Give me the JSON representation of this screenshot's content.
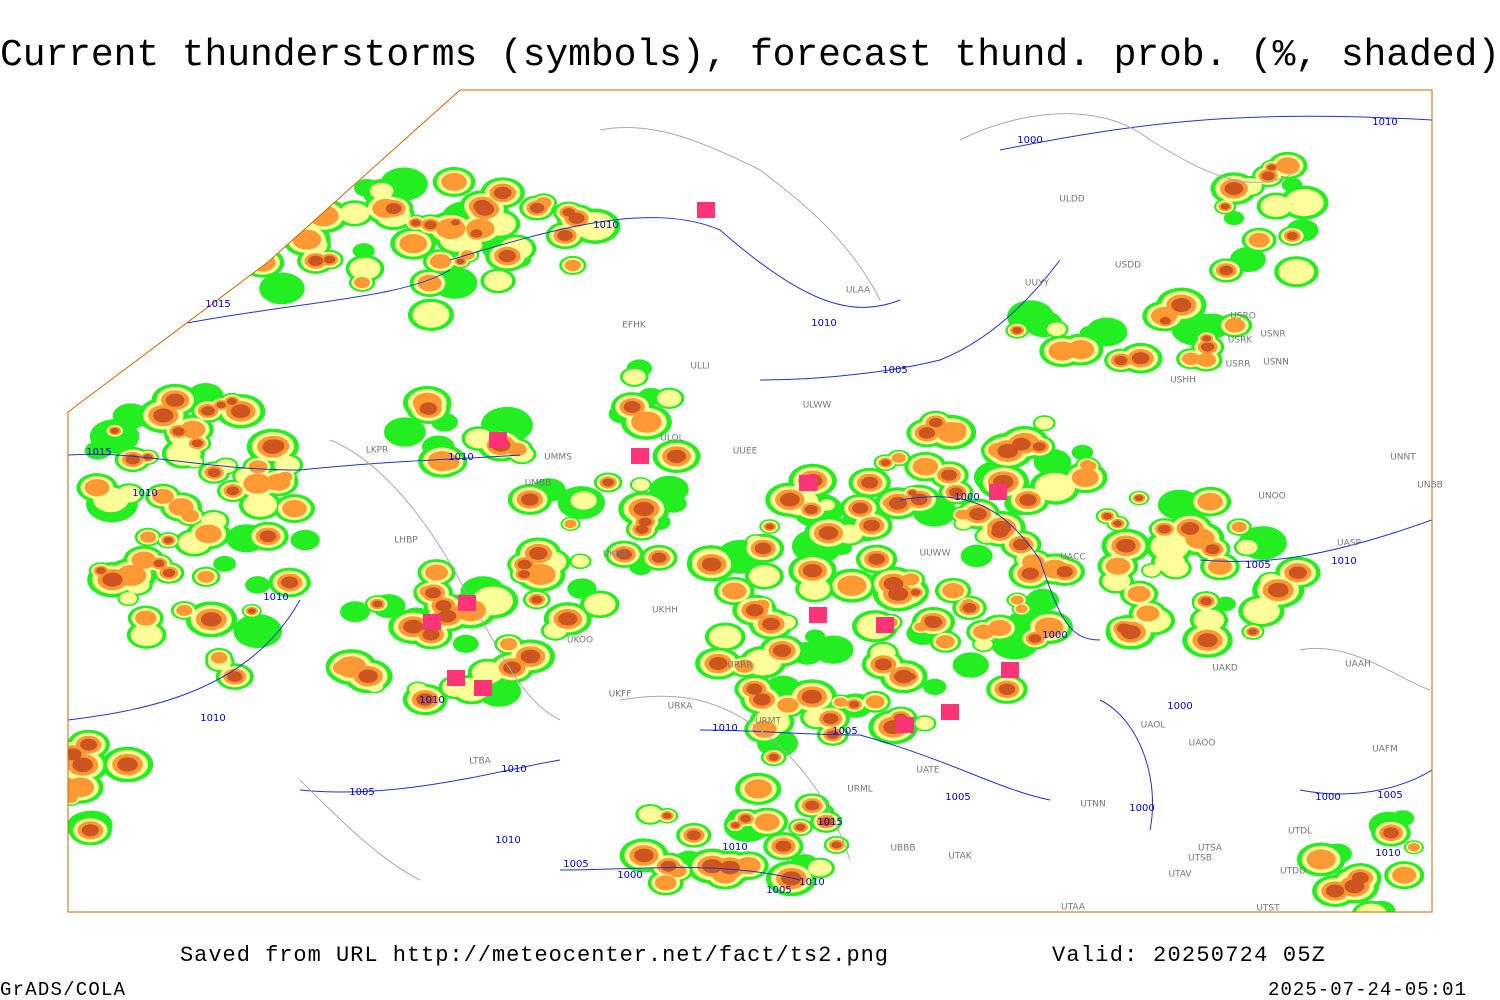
{
  "title": "Current thunderstorms (symbols), forecast thund. prob. (%, shaded)",
  "footer": {
    "source": "Saved from URL http://meteocenter.net/fact/ts2.png",
    "valid": "Valid: 20250724 05Z",
    "software": "GrADS/COLA",
    "timestamp": "2025-07-24-05:01"
  },
  "isobar_labels": [
    "1000",
    "1010",
    "1010",
    "1015",
    "1010",
    "1005",
    "1015",
    "1010",
    "1010",
    "1000",
    "1010",
    "1000",
    "1005",
    "1010",
    "1010",
    "1010",
    "1010",
    "1005",
    "1000",
    "1010",
    "1005",
    "1005",
    "1000",
    "1015",
    "1010",
    "1010",
    "1005",
    "1000",
    "1010",
    "1005",
    "1000",
    "1005",
    "1010"
  ],
  "stations": [
    "ULDD",
    "USDD",
    "UUYY",
    "ULAA",
    "USRO",
    "USRK",
    "USNR",
    "USRR",
    "USNN",
    "USHH",
    "EFHK",
    "ULLI",
    "ULWW",
    "ULOL",
    "UMMS",
    "LKPR",
    "UMBB",
    "UUEE",
    "UNOO",
    "UNBB",
    "UNNT",
    "UASP",
    "UACC",
    "UUWW",
    "UKKK",
    "LHBP",
    "UKHH",
    "UKOO",
    "URRR",
    "UKFF",
    "URKA",
    "URMT",
    "UATE",
    "UAKD",
    "UAAH",
    "UAOO",
    "UAOL",
    "UTNN",
    "UTSA",
    "UTSB",
    "UTAV",
    "UTAA",
    "UBBB",
    "UTAK",
    "LTBA",
    "URML",
    "UAFM",
    "UTDL",
    "UTDD",
    "UTST"
  ]
}
